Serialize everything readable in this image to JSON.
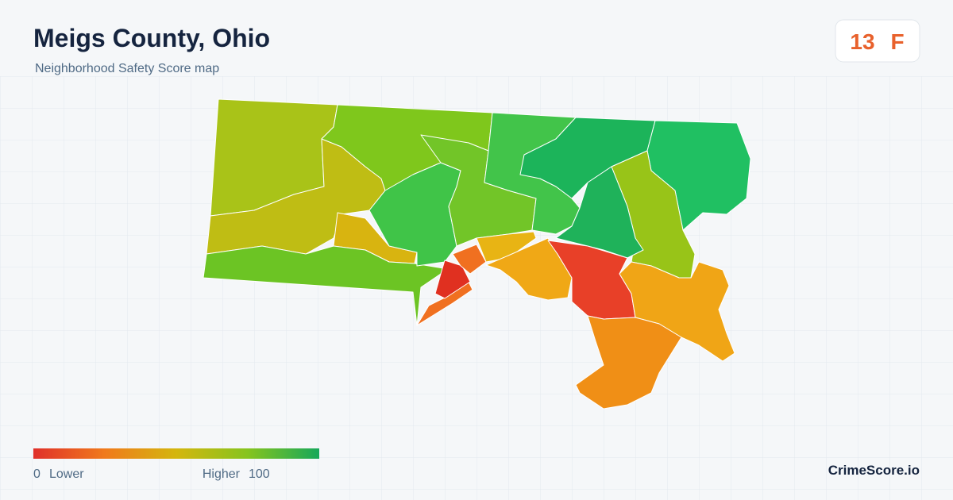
{
  "header": {
    "title": "Meigs County, Ohio",
    "subtitle": "Neighborhood Safety Score map"
  },
  "score": {
    "value": "13",
    "grade": "F"
  },
  "legend": {
    "min": "0",
    "min_label": "Lower",
    "max_label": "Higher",
    "max": "100"
  },
  "footer": {
    "brand": "CrimeScore.io"
  }
}
